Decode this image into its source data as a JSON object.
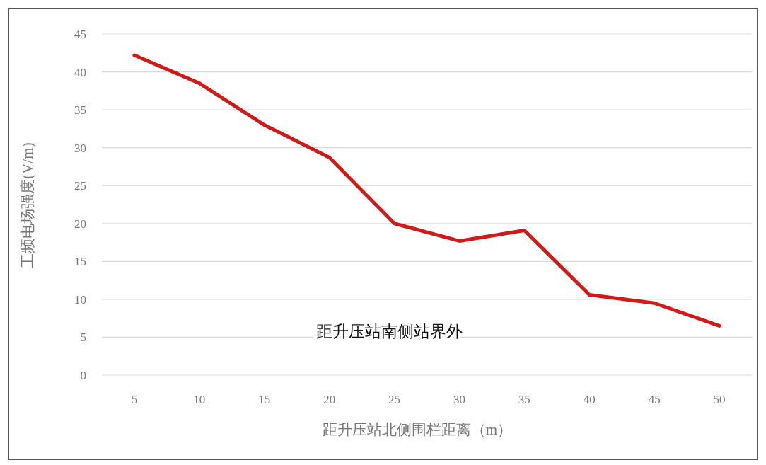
{
  "chart_data": {
    "type": "line",
    "xlabel": "距升压站北侧围栏距离（m）",
    "ylabel": "工频电场强度(V/m)",
    "categories": [
      "5",
      "10",
      "15",
      "20",
      "25",
      "30",
      "35",
      "40",
      "45",
      "50"
    ],
    "values": [
      42.2,
      38.5,
      33.0,
      28.7,
      20.0,
      17.7,
      19.1,
      10.6,
      9.5,
      6.5
    ],
    "color": "#d11a17",
    "ylim": [
      0,
      45
    ],
    "yticks": [
      0,
      5,
      10,
      15,
      20,
      25,
      30,
      35,
      40,
      45
    ],
    "grid": "y",
    "annotations": [
      "距升压站南侧站界外"
    ]
  }
}
